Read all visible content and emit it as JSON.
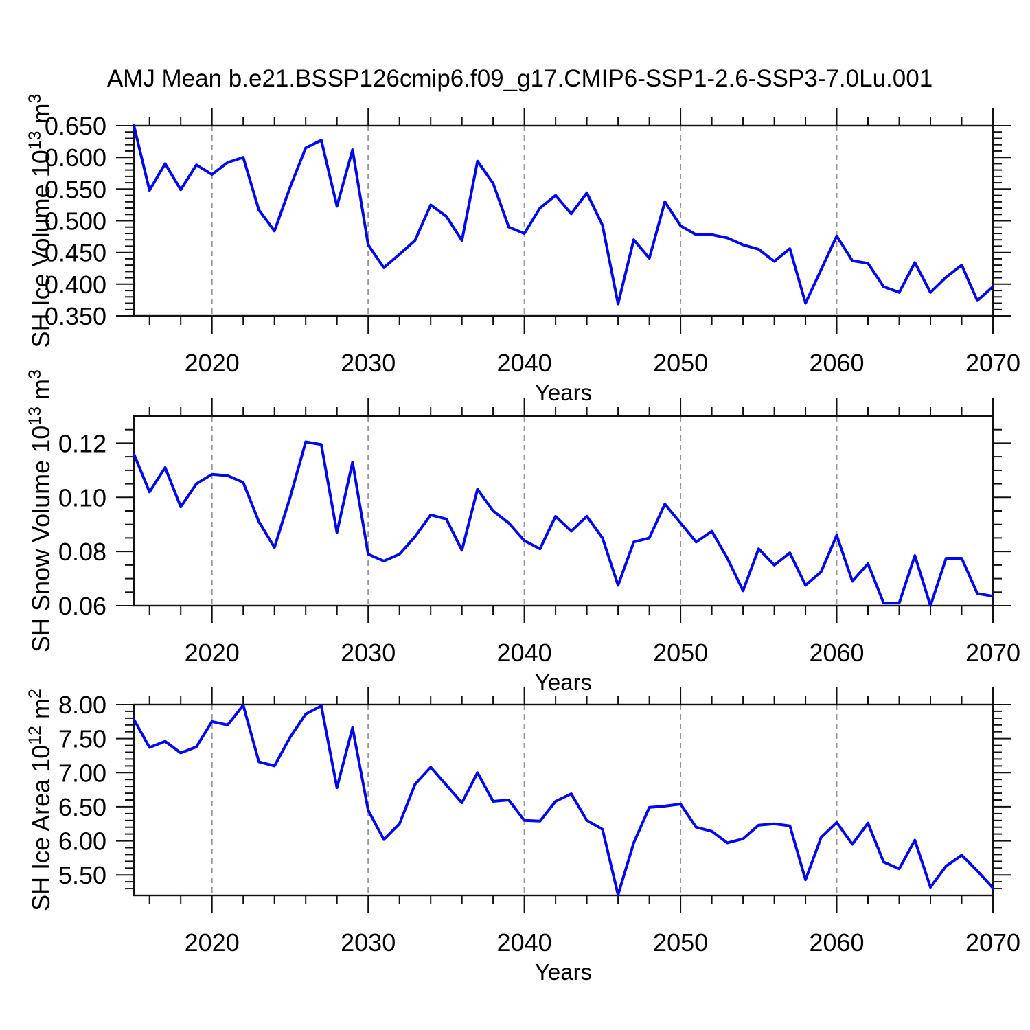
{
  "title": "AMJ Mean b.e21.BSSP126cmip6.f09_g17.CMIP6-SSP1-2.6-SSP3-7.0Lu.001",
  "line_color": "#0008EB",
  "grid_color": "#999999",
  "axis_color": "#111111",
  "years": [
    2015,
    2016,
    2017,
    2018,
    2019,
    2020,
    2021,
    2022,
    2023,
    2024,
    2025,
    2026,
    2027,
    2028,
    2029,
    2030,
    2031,
    2032,
    2033,
    2034,
    2035,
    2036,
    2037,
    2038,
    2039,
    2040,
    2041,
    2042,
    2043,
    2044,
    2045,
    2046,
    2047,
    2048,
    2049,
    2050,
    2051,
    2052,
    2053,
    2054,
    2055,
    2056,
    2057,
    2058,
    2059,
    2060,
    2061,
    2062,
    2063,
    2064,
    2065,
    2066,
    2067,
    2068,
    2069,
    2070
  ],
  "chart_data": [
    {
      "type": "line",
      "series_name": "SH Ice Volume",
      "ylabel": "SH Ice Volume 10^13 m^3",
      "ylabel_parts": [
        [
          "SH Ice Volume 10",
          false
        ],
        [
          "13",
          true
        ],
        [
          " m",
          false
        ],
        [
          "3",
          true
        ]
      ],
      "xlabel": "Years",
      "xlim": [
        2015,
        2070
      ],
      "ylim": [
        0.35,
        0.65
      ],
      "xticks": [
        2020,
        2030,
        2040,
        2050,
        2060,
        2070
      ],
      "xminor_step": 2,
      "grid_years": [
        2020,
        2030,
        2040,
        2050,
        2060
      ],
      "yticks": [
        [
          0.35,
          "0.350"
        ],
        [
          0.4,
          "0.400"
        ],
        [
          0.45,
          "0.450"
        ],
        [
          0.5,
          "0.500"
        ],
        [
          0.55,
          "0.550"
        ],
        [
          0.6,
          "0.600"
        ],
        [
          0.65,
          "0.650"
        ]
      ],
      "yminor_step": 0.01,
      "values": [
        0.65,
        0.548,
        0.59,
        0.549,
        0.588,
        0.573,
        0.592,
        0.6,
        0.517,
        0.484,
        0.553,
        0.615,
        0.627,
        0.523,
        0.612,
        0.462,
        0.426,
        0.447,
        0.469,
        0.525,
        0.507,
        0.469,
        0.594,
        0.559,
        0.49,
        0.48,
        0.52,
        0.54,
        0.511,
        0.544,
        0.493,
        0.369,
        0.47,
        0.441,
        0.53,
        0.492,
        0.478,
        0.478,
        0.473,
        0.462,
        0.455,
        0.436,
        0.456,
        0.37,
        0.423,
        0.476,
        0.437,
        0.433,
        0.396,
        0.387,
        0.434,
        0.387,
        0.411,
        0.43,
        0.374,
        0.396
      ]
    },
    {
      "type": "line",
      "series_name": "SH Snow Volume",
      "ylabel": "SH Snow Volume 10^13 m^3",
      "ylabel_parts": [
        [
          "SH Snow Volume 10",
          false
        ],
        [
          "13",
          true
        ],
        [
          " m",
          false
        ],
        [
          "3",
          true
        ]
      ],
      "xlabel": "Years",
      "xlim": [
        2015,
        2070
      ],
      "ylim": [
        0.06,
        0.13
      ],
      "xticks": [
        2020,
        2030,
        2040,
        2050,
        2060,
        2070
      ],
      "xminor_step": 2,
      "grid_years": [
        2020,
        2030,
        2040,
        2050,
        2060
      ],
      "yticks": [
        [
          0.06,
          "0.06"
        ],
        [
          0.08,
          "0.08"
        ],
        [
          0.1,
          "0.10"
        ],
        [
          0.12,
          "0.12"
        ]
      ],
      "yminor_step": 0.005,
      "values": [
        0.116,
        0.102,
        0.111,
        0.0965,
        0.105,
        0.1085,
        0.108,
        0.1055,
        0.091,
        0.0815,
        0.1,
        0.1205,
        0.1195,
        0.087,
        0.113,
        0.079,
        0.0765,
        0.079,
        0.0855,
        0.0935,
        0.092,
        0.0805,
        0.103,
        0.095,
        0.0905,
        0.084,
        0.081,
        0.093,
        0.0875,
        0.093,
        0.085,
        0.0675,
        0.0835,
        0.085,
        0.0975,
        0.0905,
        0.0835,
        0.0875,
        0.0775,
        0.0655,
        0.081,
        0.075,
        0.0795,
        0.0675,
        0.0725,
        0.086,
        0.069,
        0.0755,
        0.061,
        0.061,
        0.0785,
        0.06,
        0.0775,
        0.0775,
        0.0645,
        0.0635
      ]
    },
    {
      "type": "line",
      "series_name": "SH Ice Area",
      "ylabel": "SH Ice Area 10^12 m^2",
      "ylabel_parts": [
        [
          "SH Ice Area 10",
          false
        ],
        [
          "12",
          true
        ],
        [
          " m",
          false
        ],
        [
          "2",
          true
        ]
      ],
      "xlabel": "Years",
      "xlim": [
        2015,
        2070
      ],
      "ylim": [
        5.2,
        8.0
      ],
      "xticks": [
        2020,
        2030,
        2040,
        2050,
        2060,
        2070
      ],
      "xminor_step": 2,
      "grid_years": [
        2020,
        2030,
        2040,
        2050,
        2060
      ],
      "yticks": [
        [
          5.5,
          "5.50"
        ],
        [
          6.0,
          "6.00"
        ],
        [
          6.5,
          "6.50"
        ],
        [
          7.0,
          "7.00"
        ],
        [
          7.5,
          "7.50"
        ],
        [
          8.0,
          "8.00"
        ]
      ],
      "yminor_step": 0.1,
      "values": [
        7.78,
        7.37,
        7.46,
        7.29,
        7.38,
        7.75,
        7.7,
        7.99,
        7.16,
        7.1,
        7.52,
        7.86,
        7.98,
        6.78,
        7.66,
        6.45,
        6.02,
        6.25,
        6.83,
        7.08,
        6.82,
        6.56,
        7.0,
        6.58,
        6.6,
        6.3,
        6.29,
        6.58,
        6.69,
        6.3,
        6.17,
        5.21,
        5.97,
        6.49,
        6.51,
        6.54,
        6.2,
        6.14,
        5.97,
        6.03,
        6.23,
        6.25,
        6.22,
        5.43,
        6.05,
        6.27,
        5.95,
        6.26,
        5.69,
        5.59,
        6.01,
        5.32,
        5.63,
        5.79,
        5.56,
        5.31
      ]
    }
  ]
}
